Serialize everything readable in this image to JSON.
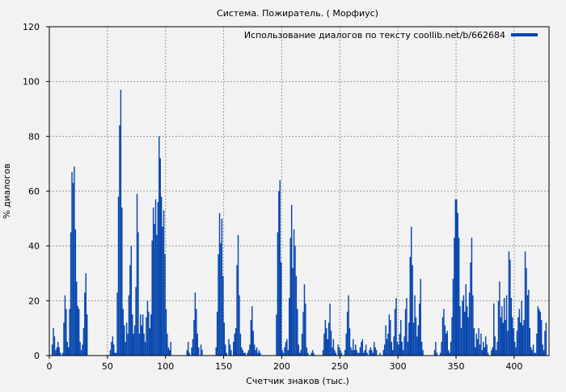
{
  "chart_data": {
    "type": "bar",
    "title": "Система. Пожиратель. ( Морфиус)",
    "xlabel": "Счетчик знаков (тыс.)",
    "ylabel": "% диалогов",
    "xlim": [
      0,
      430
    ],
    "ylim": [
      0,
      120
    ],
    "xticks": [
      0,
      50,
      100,
      150,
      200,
      250,
      300,
      350,
      400
    ],
    "yticks": [
      0,
      20,
      40,
      60,
      80,
      100,
      120
    ],
    "grid": true,
    "legend_position": "top-right",
    "bar_color": "#0645ad",
    "series": [
      {
        "name": "Использование диалогов по тексту coollib.net/b/662684",
        "x_start": 0,
        "bin_width": 1,
        "values": [
          0,
          0,
          4,
          10,
          7,
          2,
          3,
          5,
          3,
          1,
          0,
          1,
          12,
          22,
          17,
          5,
          3,
          17,
          45,
          67,
          63,
          69,
          46,
          27,
          18,
          17,
          5,
          2,
          4,
          10,
          23,
          30,
          15,
          0,
          0,
          0,
          0,
          0,
          0,
          0,
          0,
          0,
          0,
          0,
          0,
          0,
          0,
          0,
          0,
          0,
          0,
          0,
          2,
          5,
          7,
          4,
          1,
          1,
          23,
          58,
          84,
          97,
          54,
          17,
          11,
          5,
          12,
          8,
          22,
          33,
          40,
          15,
          8,
          11,
          25,
          59,
          45,
          8,
          15,
          11,
          15,
          8,
          5,
          14,
          20,
          16,
          10,
          15,
          42,
          54,
          48,
          57,
          44,
          56,
          80,
          72,
          58,
          47,
          53,
          37,
          17,
          8,
          3,
          2,
          5,
          0,
          0,
          0,
          0,
          0,
          0,
          0,
          0,
          0,
          0,
          0,
          0,
          0,
          2,
          5,
          1,
          0,
          3,
          6,
          13,
          23,
          17,
          8,
          3,
          0,
          4,
          2,
          0,
          0,
          0,
          0,
          0,
          0,
          0,
          0,
          0,
          0,
          0,
          3,
          16,
          37,
          52,
          41,
          50,
          29,
          12,
          4,
          1,
          0,
          6,
          4,
          2,
          0,
          5,
          8,
          10,
          33,
          44,
          22,
          8,
          3,
          2,
          1,
          1,
          0,
          1,
          2,
          4,
          13,
          18,
          9,
          4,
          2,
          3,
          1,
          2,
          1,
          0,
          0,
          0,
          0,
          0,
          0,
          0,
          0,
          0,
          0,
          0,
          0,
          0,
          15,
          45,
          60,
          64,
          34,
          2,
          1,
          3,
          5,
          6,
          2,
          21,
          43,
          55,
          32,
          46,
          40,
          29,
          17,
          4,
          1,
          2,
          8,
          16,
          26,
          19,
          3,
          1,
          0,
          0,
          1,
          2,
          1,
          0,
          0,
          0,
          0,
          0,
          0,
          0,
          2,
          8,
          13,
          10,
          6,
          12,
          19,
          9,
          3,
          6,
          2,
          1,
          0,
          4,
          3,
          2,
          1,
          0,
          0,
          2,
          8,
          16,
          22,
          10,
          3,
          2,
          6,
          2,
          4,
          2,
          1,
          1,
          3,
          5,
          6,
          1,
          2,
          4,
          1,
          0,
          2,
          3,
          2,
          1,
          5,
          3,
          2,
          0,
          0,
          1,
          0,
          0,
          2,
          4,
          11,
          6,
          8,
          15,
          13,
          5,
          2,
          7,
          17,
          21,
          5,
          4,
          8,
          13,
          5,
          2,
          7,
          17,
          21,
          5,
          12,
          36,
          47,
          33,
          12,
          22,
          14,
          7,
          11,
          19,
          28,
          5,
          2,
          0,
          0,
          0,
          0,
          0,
          0,
          0,
          0,
          0,
          2,
          5,
          1,
          0,
          0,
          1,
          5,
          14,
          17,
          11,
          8,
          9,
          2,
          1,
          5,
          14,
          28,
          43,
          57,
          57,
          52,
          43,
          18,
          10,
          20,
          22,
          16,
          26,
          18,
          14,
          23,
          34,
          43,
          22,
          10,
          3,
          8,
          6,
          10,
          4,
          8,
          2,
          5,
          3,
          7,
          4,
          1,
          0,
          0,
          2,
          3,
          19,
          7,
          2,
          5,
          20,
          27,
          14,
          18,
          12,
          21,
          13,
          22,
          9,
          38,
          35,
          21,
          14,
          10,
          5,
          3,
          9,
          14,
          17,
          12,
          20,
          11,
          13,
          38,
          32,
          22,
          24,
          10,
          3,
          2,
          4,
          1,
          1,
          8,
          18,
          17,
          16,
          13,
          4,
          2,
          9,
          12,
          0,
          0
        ]
      }
    ]
  }
}
